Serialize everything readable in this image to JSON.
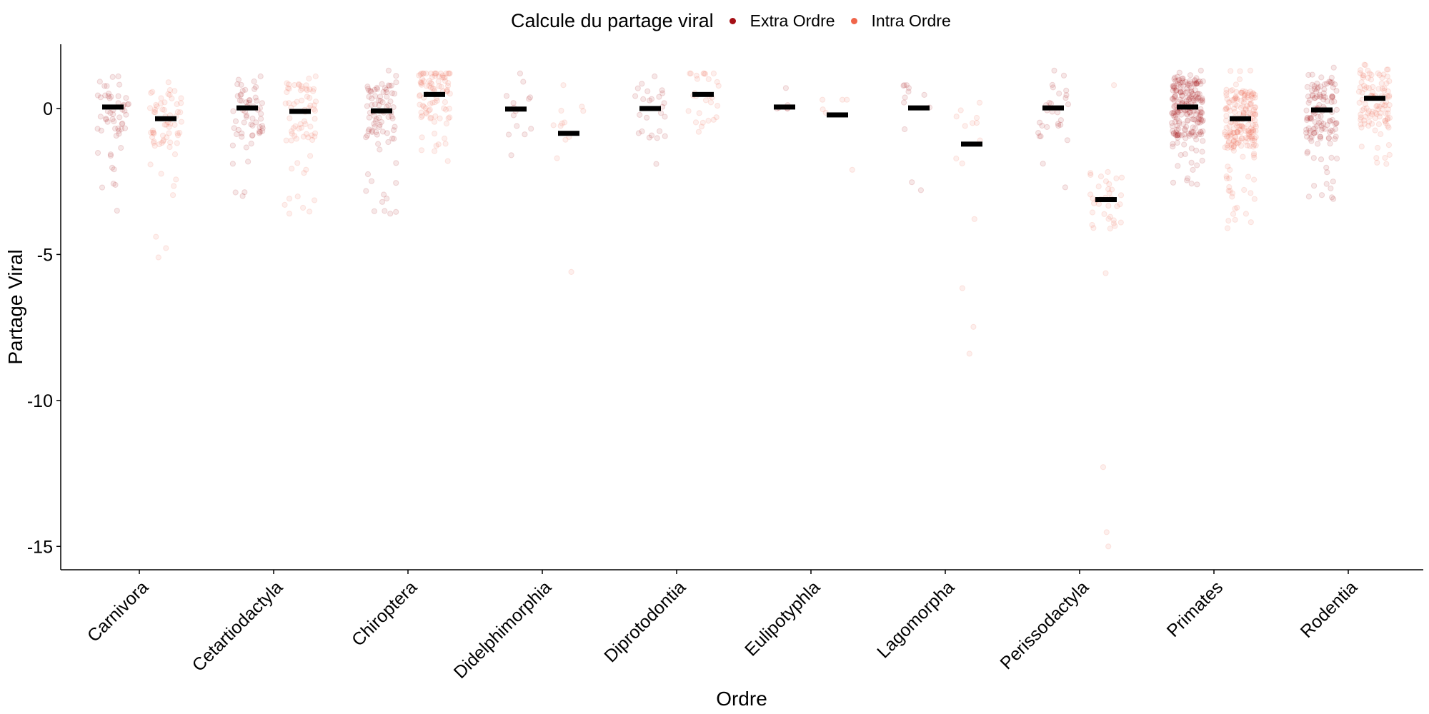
{
  "legend": {
    "title": "Calcule du partage viral",
    "items": [
      {
        "label": "Extra Ordre",
        "color": "#a50f15"
      },
      {
        "label": "Intra Ordre",
        "color": "#f0654a"
      }
    ]
  },
  "chart_data": {
    "type": "scatter",
    "subtype": "jittered strip plot with mean markers",
    "xlabel": "Ordre",
    "ylabel": "Partage Viral",
    "ylim": [
      -15.8,
      2.2
    ],
    "yticks": [
      0,
      -5,
      -10,
      -15
    ],
    "ytick_labels": [
      "0",
      "-5",
      "-10",
      "-15"
    ],
    "categories": [
      "Carnivora",
      "Cetartiodactyla",
      "Chiroptera",
      "Didelphimorphia",
      "Diprotodontia",
      "Eulipotyphla",
      "Lagomorpha",
      "Perissodactyla",
      "Primates",
      "Rodentia"
    ],
    "grid": false,
    "legend_position": "top",
    "series": [
      {
        "name": "Extra Ordre",
        "color": "#a50f15",
        "means": [
          0.05,
          0.02,
          -0.08,
          -0.02,
          0.0,
          0.05,
          0.02,
          0.02,
          0.05,
          -0.05
        ],
        "ranges": [
          [
            -3.5,
            1.1
          ],
          [
            -3.0,
            1.1
          ],
          [
            -3.6,
            1.3
          ],
          [
            -1.6,
            1.2
          ],
          [
            -1.9,
            1.1
          ],
          [
            0.0,
            0.7
          ],
          [
            -2.8,
            0.8
          ],
          [
            -2.7,
            1.3
          ],
          [
            -2.6,
            1.3
          ],
          [
            -3.1,
            1.4
          ]
        ],
        "counts": [
          55,
          60,
          85,
          14,
          25,
          6,
          12,
          28,
          220,
          130
        ]
      },
      {
        "name": "Intra Ordre",
        "color": "#f0654a",
        "means": [
          -0.35,
          -0.1,
          0.48,
          -0.85,
          0.48,
          -0.22,
          -1.22,
          -3.12,
          -0.35,
          0.35
        ],
        "ranges": [
          [
            -5.1,
            0.9
          ],
          [
            -3.6,
            1.1
          ],
          [
            -1.8,
            1.2
          ],
          [
            -5.6,
            0.8
          ],
          [
            -0.8,
            1.2
          ],
          [
            -2.1,
            0.3
          ],
          [
            -8.4,
            0.2
          ],
          [
            -15.0,
            0.8
          ],
          [
            -4.1,
            1.3
          ],
          [
            -1.9,
            1.5
          ]
        ],
        "counts": [
          65,
          70,
          90,
          12,
          28,
          6,
          14,
          40,
          200,
          110
        ]
      }
    ]
  }
}
